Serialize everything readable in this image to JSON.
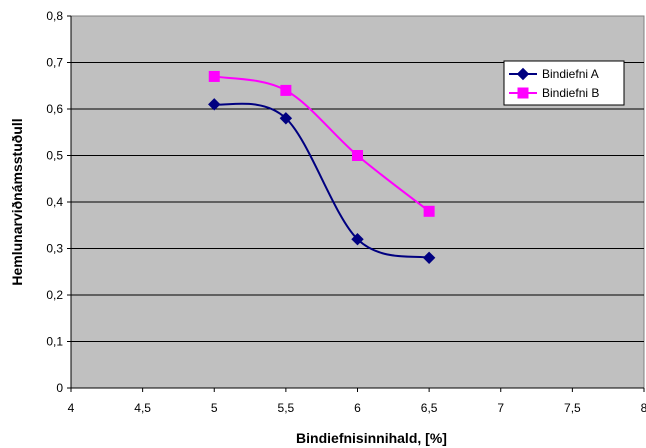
{
  "chart_data": {
    "type": "line",
    "title": "",
    "xlabel": "Bindiefnisinnihald, [%]",
    "ylabel": "Hemlunarviðnámsstuðull",
    "xlim": [
      4,
      8
    ],
    "ylim": [
      0,
      0.8
    ],
    "x_ticks": [
      "4",
      "4,5",
      "5",
      "5,5",
      "6",
      "6,5",
      "7",
      "7,5",
      "8"
    ],
    "y_ticks": [
      "0",
      "0,1",
      "0,2",
      "0,3",
      "0,4",
      "0,5",
      "0,6",
      "0,7",
      "0,8"
    ],
    "grid": "horizontal",
    "legend_position": "top-right",
    "series": [
      {
        "name": "Bindiefni A",
        "color": "#000080",
        "marker": "diamond",
        "smooth": true,
        "x": [
          5,
          5.5,
          6,
          6.5
        ],
        "y": [
          0.61,
          0.58,
          0.32,
          0.28
        ]
      },
      {
        "name": "Bindiefni B",
        "color": "#FF00FF",
        "marker": "square",
        "smooth": true,
        "x": [
          5,
          5.5,
          6,
          6.5
        ],
        "y": [
          0.67,
          0.64,
          0.5,
          0.38
        ]
      }
    ],
    "colors": {
      "plot_background": "#C0C0C0",
      "gridline": "#000000"
    }
  }
}
